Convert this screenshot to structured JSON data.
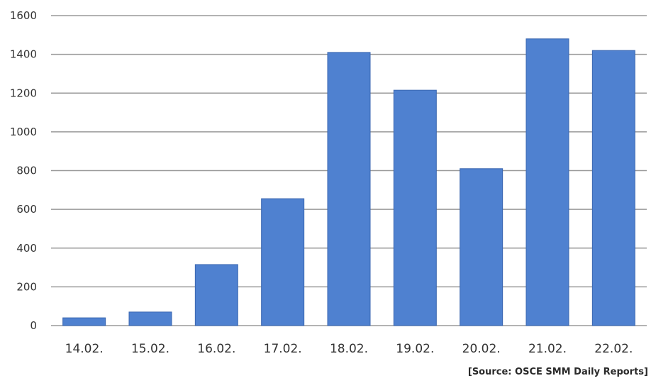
{
  "chart_data": {
    "type": "bar",
    "categories": [
      "14.02.",
      "15.02.",
      "16.02.",
      "17.02.",
      "18.02.",
      "19.02.",
      "20.02.",
      "21.02.",
      "22.02."
    ],
    "values": [
      40,
      70,
      315,
      655,
      1410,
      1215,
      810,
      1480,
      1420
    ],
    "title": "",
    "xlabel": "",
    "ylabel": "",
    "ylim": [
      0,
      1600
    ],
    "yticks": [
      0,
      200,
      400,
      600,
      800,
      1000,
      1200,
      1400,
      1600
    ],
    "grid": true,
    "legend": "none",
    "bar_color": "#4f81d0",
    "bar_edge_color": "#3a66b0",
    "grid_color": "#9a9a9a"
  },
  "source_note": "[Source: OSCE SMM Daily Reports]"
}
